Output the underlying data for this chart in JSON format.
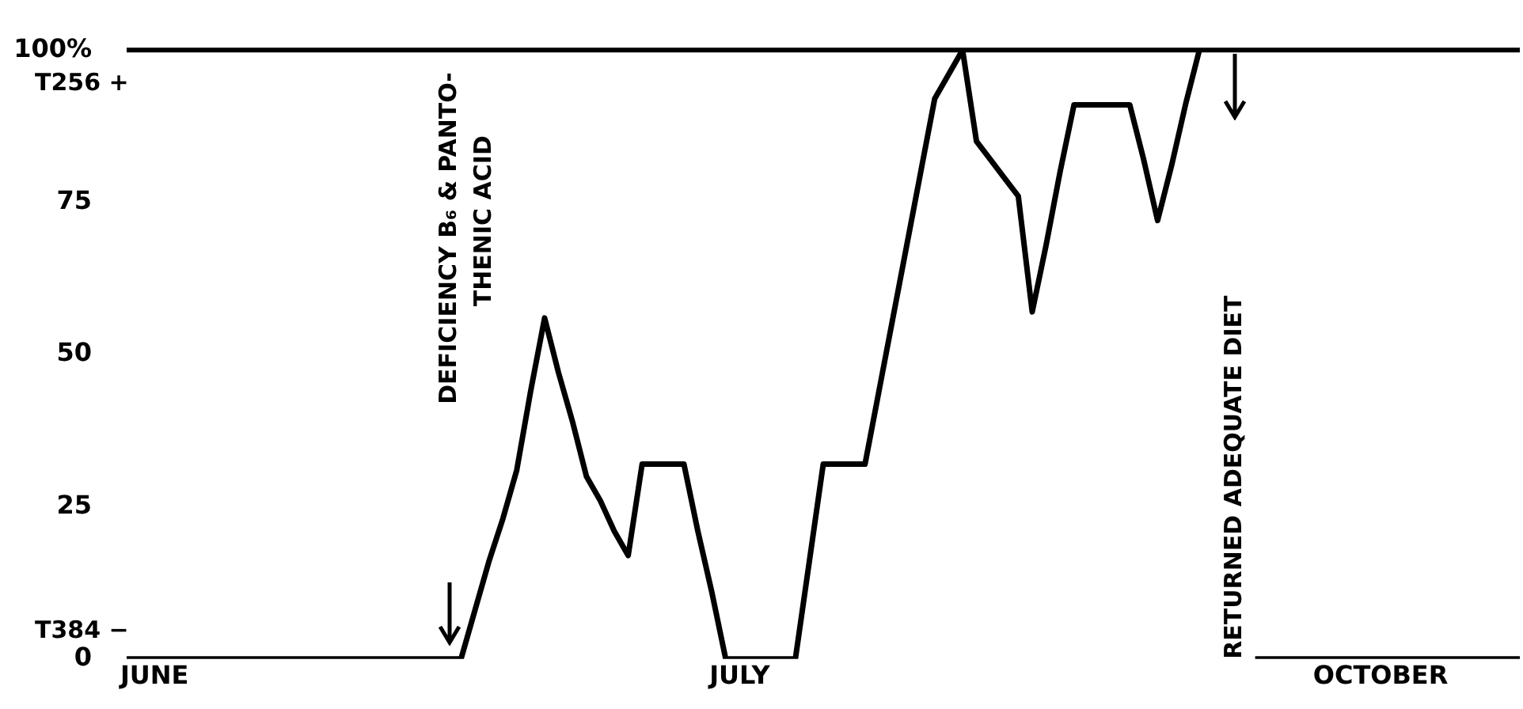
{
  "chart_data": {
    "type": "line",
    "categories": [
      null,
      null,
      "JUNE",
      null,
      null,
      null,
      null,
      null,
      null,
      null,
      null,
      null,
      null,
      null,
      null,
      null,
      null,
      null,
      null,
      null,
      null,
      null,
      null,
      null,
      null,
      null,
      null,
      null,
      null,
      null,
      null,
      null,
      null,
      null,
      null,
      null,
      null,
      null,
      null,
      null,
      null,
      null,
      null,
      null,
      "JULY",
      null,
      null,
      null,
      null,
      null,
      null,
      null,
      null,
      null,
      null,
      null,
      null,
      null,
      null,
      null,
      null,
      null,
      null,
      null,
      null,
      null,
      null,
      null,
      null,
      null,
      null,
      null,
      null,
      null,
      null,
      null,
      null,
      null,
      null,
      null,
      null,
      null,
      null,
      null,
      null,
      null,
      null,
      null,
      null,
      null,
      "OCTOBER",
      null,
      null,
      null,
      null,
      null,
      null,
      null,
      null,
      null,
      null
    ],
    "series": [
      {
        "color": "#000000",
        "values": [
          0,
          0,
          0,
          0,
          0,
          0,
          0,
          0,
          0,
          0,
          0,
          0,
          0,
          0,
          0,
          0,
          0,
          0,
          0,
          0,
          0,
          0,
          0,
          0,
          0,
          8,
          16,
          23,
          31,
          44,
          56,
          47,
          39,
          30,
          26,
          21,
          17,
          32,
          32,
          32,
          32,
          21,
          11,
          0,
          0,
          0,
          0,
          0,
          0,
          16,
          32,
          32,
          32,
          32,
          44,
          56,
          68,
          80,
          92,
          96,
          100,
          85,
          82,
          79,
          76,
          57,
          68,
          80,
          91,
          91,
          91,
          91,
          91,
          82,
          72,
          81,
          91,
          100,
          null,
          null,
          null,
          0,
          0,
          0,
          0,
          0,
          0,
          0,
          0,
          0,
          0,
          0,
          0,
          0,
          0,
          0,
          0,
          0,
          0,
          0,
          0
        ]
      }
    ],
    "ylim": [
      0,
      100
    ],
    "yticks": [
      0,
      25,
      50,
      75,
      {
        "value": 100,
        "label": "100%"
      }
    ],
    "ref_lines": [
      {
        "axis": "y",
        "value": 100,
        "color": "#000000"
      }
    ],
    "annotations": [
      "T256 +",
      "T384 −",
      "DEFICIENCY B₆ & PANTO-\nTHENIC ACID",
      "RETURNED ADEQUATE DIET"
    ],
    "grid": false,
    "legend": false,
    "marker": "none",
    "line_style": "solid"
  }
}
